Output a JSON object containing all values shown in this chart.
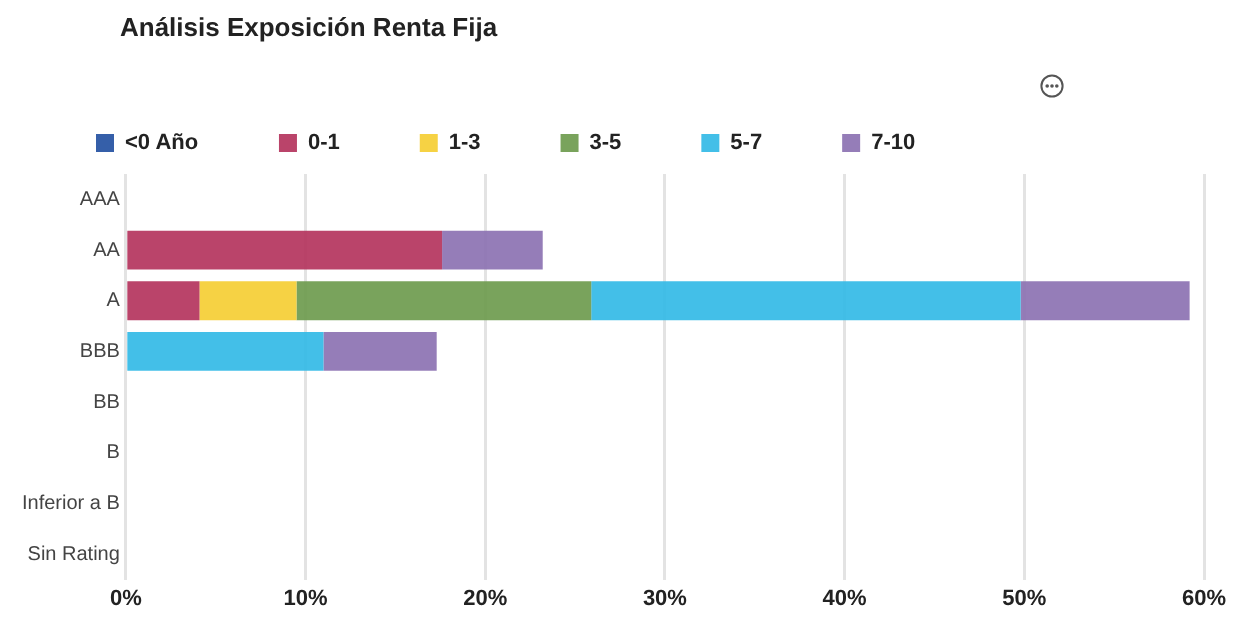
{
  "chart_data": {
    "type": "bar",
    "orientation": "horizontal",
    "stacked": true,
    "title": "Análisis Exposición Renta Fija",
    "categories": [
      "AAA",
      "AA",
      "A",
      "BBB",
      "BB",
      "B",
      "Inferior a B",
      "Sin Rating"
    ],
    "series": [
      {
        "name": "<0 Año",
        "color": "#1f4ea0",
        "values": [
          null,
          null,
          null,
          null,
          null,
          null,
          null,
          null
        ]
      },
      {
        "name": "0-1",
        "color": "#b3305a",
        "values": [
          null,
          17.6,
          4.1,
          null,
          null,
          null,
          null,
          null
        ]
      },
      {
        "name": "1-3",
        "color": "#f5cd30",
        "values": [
          null,
          null,
          5.4,
          null,
          null,
          null,
          null,
          null
        ]
      },
      {
        "name": "3-5",
        "color": "#6a994a",
        "values": [
          null,
          null,
          16.4,
          null,
          null,
          null,
          null,
          null
        ]
      },
      {
        "name": "5-7",
        "color": "#2fb8e6",
        "values": [
          null,
          null,
          23.9,
          11.0,
          null,
          null,
          null,
          null
        ]
      },
      {
        "name": "7-10",
        "color": "#8a6fb0",
        "values": [
          null,
          5.6,
          9.4,
          6.3,
          null,
          null,
          null,
          null
        ]
      }
    ],
    "xlim": [
      0,
      60
    ],
    "xticks": [
      {
        "value": 0,
        "label": "0%"
      },
      {
        "value": 10,
        "label": "10%"
      },
      {
        "value": 20,
        "label": "20%"
      },
      {
        "value": 30,
        "label": "30%"
      },
      {
        "value": 40,
        "label": "40%"
      },
      {
        "value": 50,
        "label": "50%"
      },
      {
        "value": 60,
        "label": "60%"
      }
    ],
    "grid": "x",
    "legend": "top left"
  }
}
